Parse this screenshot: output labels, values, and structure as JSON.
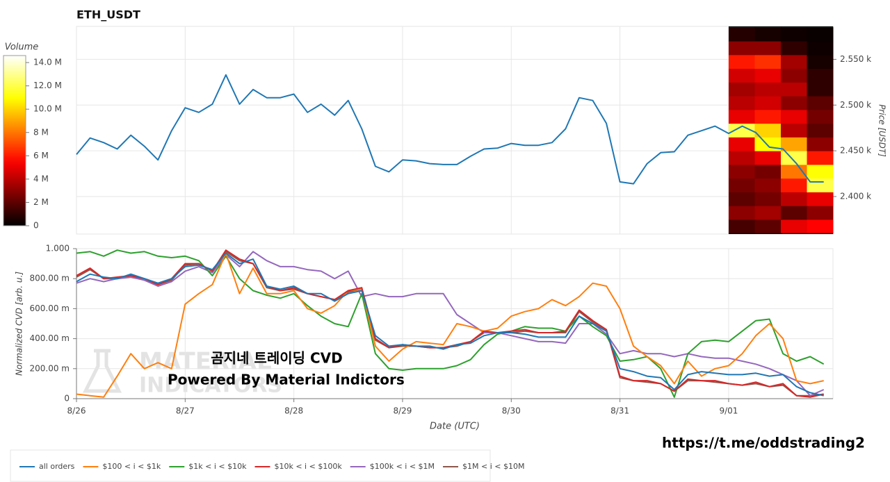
{
  "chart_data": [
    {
      "type": "line",
      "title": "ETH_USDT",
      "y_label": "Price [USDT]",
      "color": "#1f77b4",
      "x": [
        0,
        0.125,
        0.25,
        0.375,
        0.5,
        0.625,
        0.75,
        0.875,
        1,
        1.125,
        1.25,
        1.375,
        1.5,
        1.625,
        1.75,
        1.875,
        2,
        2.125,
        2.25,
        2.375,
        2.5,
        2.625,
        2.75,
        2.875,
        3,
        3.125,
        3.25,
        3.375,
        3.5,
        3.625,
        3.75,
        3.875,
        4,
        4.125,
        4.25,
        4.375,
        4.5,
        4.625,
        4.75,
        4.875,
        5,
        5.125,
        5.25,
        5.375,
        5.5,
        5.625,
        5.75,
        5.875,
        6,
        6.125,
        6.25,
        6.375,
        6.5,
        6.625,
        6.75,
        6.875
      ],
      "values": [
        2446,
        2464,
        2459,
        2452,
        2467,
        2455,
        2440,
        2472,
        2497,
        2492,
        2501,
        2533,
        2501,
        2517,
        2508,
        2508,
        2512,
        2492,
        2501,
        2489,
        2505,
        2474,
        2433,
        2427,
        2440,
        2439,
        2436,
        2435,
        2435,
        2444,
        2452,
        2453,
        2458,
        2456,
        2456,
        2459,
        2474,
        2508,
        2505,
        2480,
        2416,
        2414,
        2436,
        2448,
        2449,
        2467,
        2472,
        2477,
        2469,
        2477,
        2470,
        2454,
        2452,
        2436,
        2416,
        2416
      ],
      "xlim": [
        0,
        6.96
      ],
      "ylim": [
        2359,
        2586
      ],
      "yticks": [
        {
          "value": 2400,
          "label": "2.400 k"
        },
        {
          "value": 2450,
          "label": "2.450 k"
        },
        {
          "value": 2500,
          "label": "2.500 k"
        },
        {
          "value": 2550,
          "label": "2.550 k"
        }
      ],
      "grid": true,
      "heatmap": {
        "colorbar_title": "Volume",
        "colormap": "hot",
        "clim": [
          0,
          14.6
        ],
        "ticks": [
          0,
          {
            "value": 2,
            "label": "2 M"
          },
          {
            "value": 4,
            "label": "4 M"
          },
          {
            "value": 6,
            "label": "6 M"
          },
          {
            "value": 8,
            "label": "8 M"
          },
          {
            "value": 10,
            "label": "10.0 M"
          },
          {
            "value": 12,
            "label": "12.0 M"
          },
          {
            "value": 14,
            "label": "14.0 M"
          }
        ],
        "xbins": [
          6,
          6.24,
          6.48,
          6.72,
          6.96
        ],
        "ybins": [
          2360,
          2375,
          2390,
          2405,
          2420,
          2435,
          2450,
          2465,
          2480,
          2495,
          2510,
          2525,
          2540,
          2555,
          2570,
          2585
        ],
        "values": [
          [
            1.5,
            2,
            5,
            5.5
          ],
          [
            3,
            3.5,
            2,
            3
          ],
          [
            2,
            2.5,
            4,
            5
          ],
          [
            2.5,
            3,
            6,
            12
          ],
          [
            3,
            2.5,
            8,
            11
          ],
          [
            4,
            5,
            12,
            6
          ],
          [
            5,
            11,
            9,
            3
          ],
          [
            12,
            10,
            4,
            2
          ],
          [
            5,
            6,
            5,
            2.5
          ],
          [
            4,
            4.5,
            3,
            2
          ],
          [
            3.5,
            4,
            4,
            1
          ],
          [
            4.5,
            5,
            3,
            1
          ],
          [
            6,
            6.5,
            3.5,
            0.5
          ],
          [
            3,
            3,
            1,
            0.3
          ],
          [
            0.8,
            0.5,
            0.3,
            0.2
          ]
        ]
      }
    },
    {
      "type": "line",
      "x_label": "Date (UTC)",
      "y_label": "Normalized CVD [arb. u.]",
      "x": [
        0,
        0.125,
        0.25,
        0.375,
        0.5,
        0.625,
        0.75,
        0.875,
        1,
        1.125,
        1.25,
        1.375,
        1.5,
        1.625,
        1.75,
        1.875,
        2,
        2.125,
        2.25,
        2.375,
        2.5,
        2.625,
        2.75,
        2.875,
        3,
        3.125,
        3.25,
        3.375,
        3.5,
        3.625,
        3.75,
        3.875,
        4,
        4.125,
        4.25,
        4.375,
        4.5,
        4.625,
        4.75,
        4.875,
        5,
        5.125,
        5.25,
        5.375,
        5.5,
        5.625,
        5.75,
        5.875,
        6,
        6.125,
        6.25,
        6.375,
        6.5,
        6.625,
        6.75,
        6.875
      ],
      "xlim": [
        0,
        6.96
      ],
      "ylim": [
        0,
        1
      ],
      "xticks": [
        {
          "value": 0,
          "label": "8/26"
        },
        {
          "value": 1,
          "label": "8/27"
        },
        {
          "value": 2,
          "label": "8/28"
        },
        {
          "value": 3,
          "label": "8/29"
        },
        {
          "value": 4,
          "label": "8/30"
        },
        {
          "value": 5,
          "label": "8/31"
        },
        {
          "value": 6,
          "label": "9/01"
        }
      ],
      "yticks": [
        0,
        {
          "value": 0.2,
          "label": "200.00 m"
        },
        {
          "value": 0.4,
          "label": "400.00 m"
        },
        {
          "value": 0.6,
          "label": "600.00 m"
        },
        {
          "value": 0.8,
          "label": "800.00 m"
        },
        {
          "value": 1,
          "label": "1.000"
        }
      ],
      "grid": true,
      "legend": "bottom-left",
      "series": [
        {
          "name": "$1M < i < $10M",
          "color": "#8c564b",
          "values": [
            0.81,
            0.86,
            0.8,
            0.8,
            0.82,
            0.79,
            0.76,
            0.79,
            0.89,
            0.9,
            0.85,
            0.98,
            0.92,
            0.9,
            0.74,
            0.72,
            0.73,
            0.7,
            0.68,
            0.66,
            0.71,
            0.73,
            0.39,
            0.34,
            0.35,
            0.35,
            0.34,
            0.34,
            0.35,
            0.38,
            0.44,
            0.44,
            0.44,
            0.45,
            0.44,
            0.44,
            0.44,
            0.58,
            0.51,
            0.46,
            0.14,
            0.12,
            0.11,
            0.1,
            0.05,
            0.12,
            0.12,
            0.11,
            0.1,
            0.09,
            0.1,
            0.08,
            0.09,
            0.02,
            0.02,
            0.03
          ]
        },
        {
          "name": "$100k < i < $1M",
          "color": "#9467bd",
          "values": [
            0.77,
            0.8,
            0.78,
            0.8,
            0.81,
            0.79,
            0.75,
            0.78,
            0.85,
            0.88,
            0.84,
            0.96,
            0.88,
            0.98,
            0.92,
            0.88,
            0.88,
            0.86,
            0.85,
            0.8,
            0.85,
            0.68,
            0.7,
            0.68,
            0.68,
            0.7,
            0.7,
            0.7,
            0.56,
            0.5,
            0.44,
            0.44,
            0.42,
            0.4,
            0.38,
            0.38,
            0.37,
            0.5,
            0.5,
            0.43,
            0.3,
            0.32,
            0.3,
            0.3,
            0.28,
            0.3,
            0.28,
            0.27,
            0.27,
            0.25,
            0.23,
            0.2,
            0.16,
            0.12,
            0.02,
            0.06
          ]
        },
        {
          "name": "$1k < i < $10k",
          "color": "#2ca02c",
          "values": [
            0.97,
            0.98,
            0.95,
            0.99,
            0.97,
            0.98,
            0.95,
            0.94,
            0.95,
            0.92,
            0.82,
            0.95,
            0.8,
            0.72,
            0.69,
            0.67,
            0.7,
            0.62,
            0.55,
            0.5,
            0.48,
            0.7,
            0.3,
            0.2,
            0.19,
            0.2,
            0.2,
            0.2,
            0.22,
            0.26,
            0.36,
            0.43,
            0.45,
            0.48,
            0.47,
            0.47,
            0.45,
            0.55,
            0.48,
            0.42,
            0.25,
            0.26,
            0.28,
            0.2,
            0.01,
            0.3,
            0.38,
            0.39,
            0.38,
            0.45,
            0.52,
            0.53,
            0.3,
            0.25,
            0.28,
            0.23
          ]
        },
        {
          "name": "$100 < i < $1k",
          "color": "#ff7f0e",
          "values": [
            0.03,
            0.02,
            0.01,
            0.15,
            0.3,
            0.2,
            0.24,
            0.2,
            0.63,
            0.7,
            0.76,
            0.97,
            0.7,
            0.87,
            0.7,
            0.7,
            0.72,
            0.6,
            0.57,
            0.62,
            0.72,
            0.73,
            0.35,
            0.25,
            0.33,
            0.38,
            0.37,
            0.36,
            0.5,
            0.48,
            0.45,
            0.47,
            0.55,
            0.58,
            0.6,
            0.66,
            0.62,
            0.68,
            0.77,
            0.75,
            0.6,
            0.35,
            0.28,
            0.22,
            0.1,
            0.25,
            0.15,
            0.2,
            0.22,
            0.3,
            0.42,
            0.5,
            0.4,
            0.12,
            0.1,
            0.12
          ]
        },
        {
          "name": "$10k < i < $100k",
          "color": "#d62728",
          "values": [
            0.82,
            0.87,
            0.8,
            0.81,
            0.82,
            0.8,
            0.76,
            0.8,
            0.9,
            0.9,
            0.85,
            0.99,
            0.93,
            0.9,
            0.75,
            0.72,
            0.74,
            0.7,
            0.68,
            0.66,
            0.72,
            0.74,
            0.4,
            0.34,
            0.36,
            0.35,
            0.34,
            0.34,
            0.36,
            0.38,
            0.45,
            0.44,
            0.45,
            0.46,
            0.44,
            0.44,
            0.45,
            0.59,
            0.52,
            0.46,
            0.15,
            0.12,
            0.12,
            0.1,
            0.05,
            0.13,
            0.12,
            0.12,
            0.1,
            0.09,
            0.11,
            0.08,
            0.1,
            0.02,
            0.01,
            0.03
          ]
        },
        {
          "name": "all orders",
          "color": "#1f77b4",
          "values": [
            0.78,
            0.83,
            0.81,
            0.8,
            0.83,
            0.8,
            0.77,
            0.8,
            0.88,
            0.89,
            0.86,
            0.97,
            0.9,
            0.93,
            0.75,
            0.73,
            0.75,
            0.7,
            0.7,
            0.65,
            0.7,
            0.72,
            0.42,
            0.35,
            0.36,
            0.35,
            0.35,
            0.33,
            0.36,
            0.37,
            0.42,
            0.44,
            0.44,
            0.43,
            0.41,
            0.41,
            0.41,
            0.55,
            0.5,
            0.45,
            0.2,
            0.18,
            0.15,
            0.14,
            0.06,
            0.16,
            0.18,
            0.17,
            0.16,
            0.16,
            0.17,
            0.15,
            0.16,
            0.08,
            0.04,
            0.02
          ]
        }
      ],
      "legend_order": [
        "all orders",
        "$100 < i < $1k",
        "$1k < i < $10k",
        "$10k < i < $100k",
        "$100k < i < $1M",
        "$1M < i < $10M"
      ],
      "watermark": [
        "MATERIAL",
        "INDICATORS"
      ],
      "annotations": [
        "곰지네 트레이딩 CVD",
        "Powered By Material Indictors"
      ]
    }
  ],
  "footer_link": "https://t.me/oddstrading2"
}
